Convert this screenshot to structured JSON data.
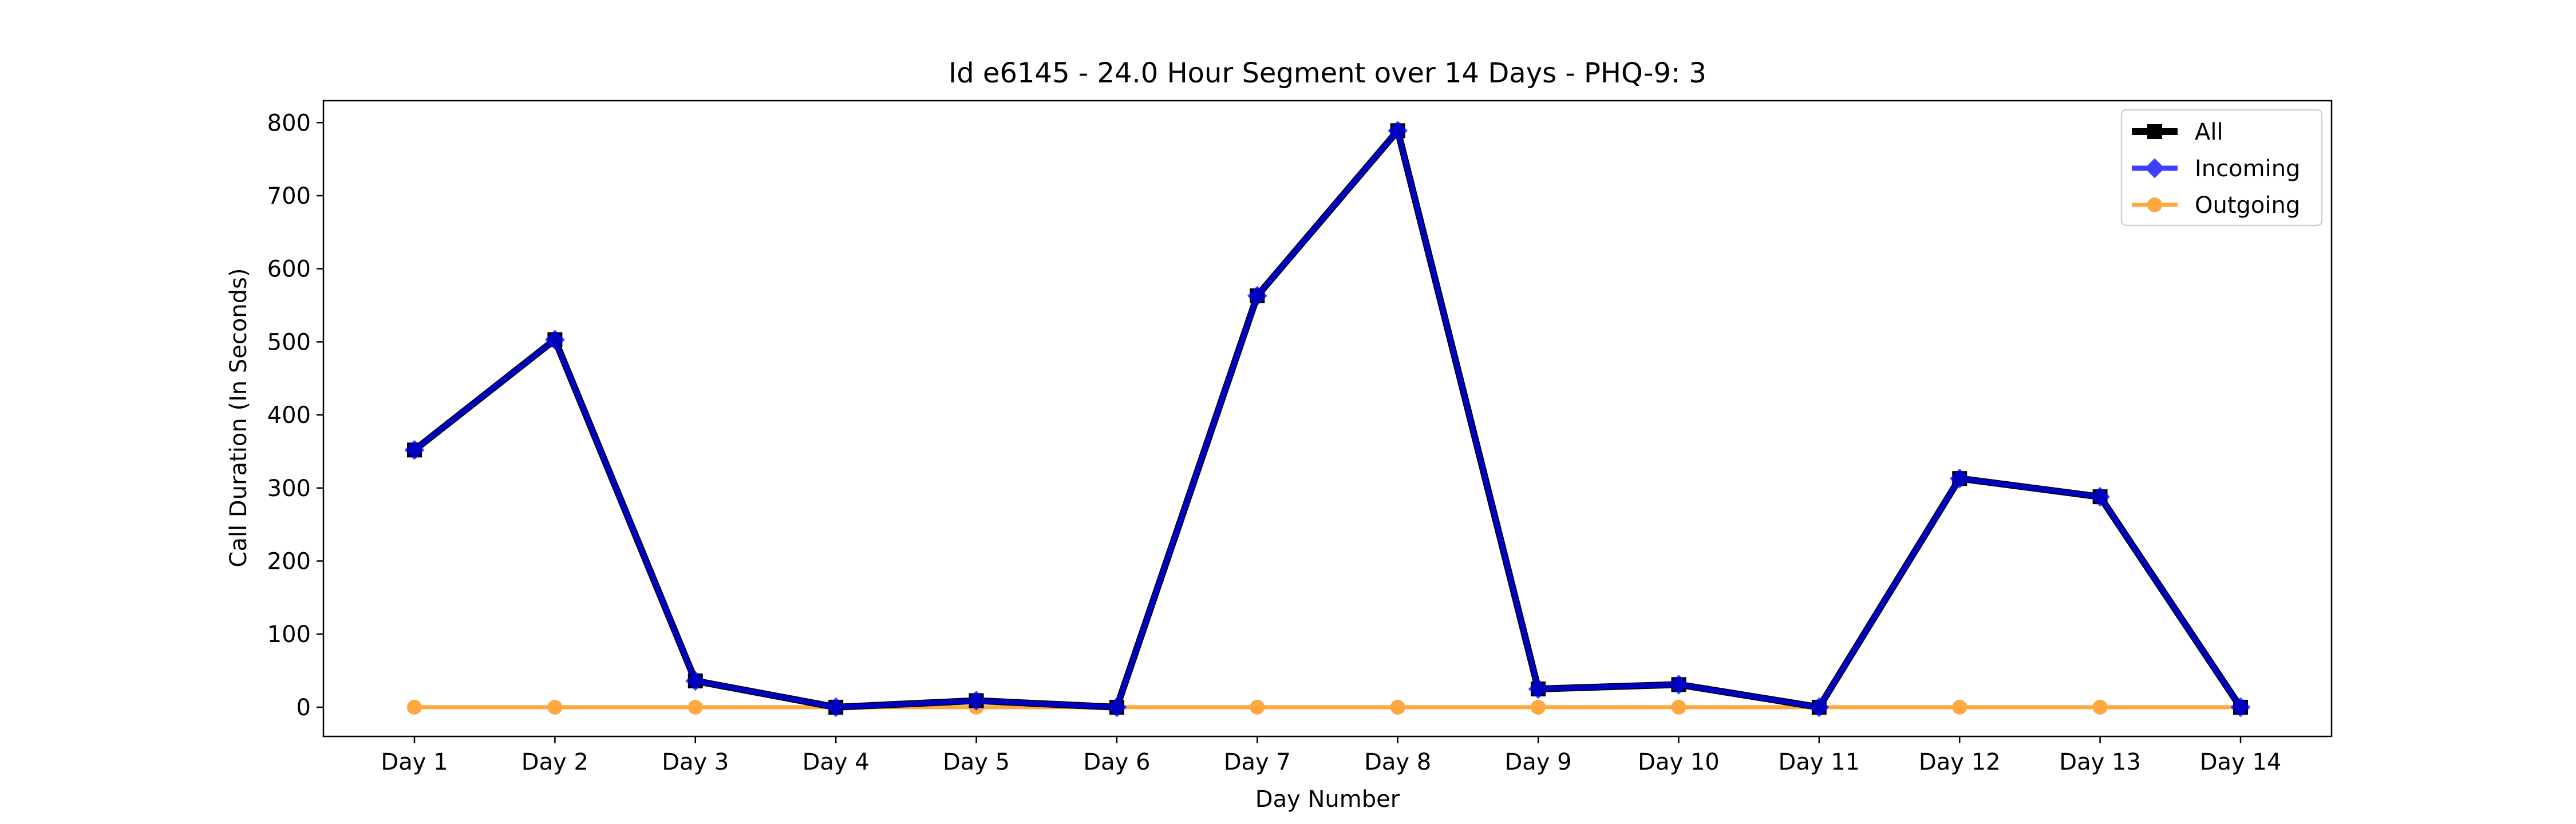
{
  "chart_data": {
    "type": "line",
    "title": "Id e6145 - 24.0 Hour Segment over 14 Days - PHQ-9: 3",
    "xlabel": "Day Number",
    "ylabel": "Call Duration (In Seconds)",
    "categories": [
      "Day 1",
      "Day 2",
      "Day 3",
      "Day 4",
      "Day 5",
      "Day 6",
      "Day 7",
      "Day 8",
      "Day 9",
      "Day 10",
      "Day 11",
      "Day 12",
      "Day 13",
      "Day 14"
    ],
    "ylim": [
      -40,
      830
    ],
    "yticks": [
      0,
      100,
      200,
      300,
      400,
      500,
      600,
      700,
      800
    ],
    "grid": false,
    "legend_position": "top-right",
    "series": [
      {
        "name": "All",
        "color": "#000000",
        "marker": "square",
        "values": [
          352,
          503,
          36,
          0,
          9,
          0,
          563,
          789,
          25,
          31,
          0,
          313,
          288,
          0
        ]
      },
      {
        "name": "Incoming",
        "color": "#0000ff",
        "marker": "diamond",
        "values": [
          352,
          503,
          36,
          0,
          9,
          0,
          563,
          789,
          25,
          31,
          0,
          313,
          288,
          0
        ]
      },
      {
        "name": "Outgoing",
        "color": "#ff8c00",
        "marker": "circle",
        "values": [
          0,
          0,
          0,
          0,
          0,
          0,
          0,
          0,
          0,
          0,
          0,
          0,
          0,
          0
        ]
      }
    ]
  }
}
